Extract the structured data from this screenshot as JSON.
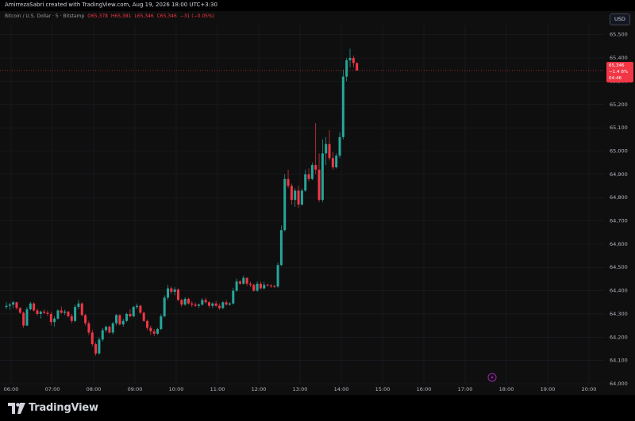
{
  "header": {
    "attribution": "AmirrezaSabri created with TradingView.com, Aug 19, 2026 18:00 UTC+3:30",
    "symbol": "Bitcoin / U.S. Dollar · 5 · Bitstamp",
    "ohlc": {
      "o": "O65,378",
      "h": "H65,381",
      "l": "L65,346",
      "c": "C65,346",
      "change": "−31 (−0.05%)"
    }
  },
  "currency_button": "USD",
  "price_tag": {
    "price": "65,346",
    "change": "−1.4 8%",
    "countdown": "04:46"
  },
  "brand": {
    "name": "TradingView",
    "logo_icon": "tradingview-logo-icon"
  },
  "event_icon": "lightning-icon",
  "colors": {
    "up": "#26a69a",
    "down": "#f23645",
    "background": "#0f0f0f",
    "grid": "#1c1f26"
  },
  "chart_data": {
    "type": "candlestick",
    "interval": "5m",
    "y_ticks": [
      64000,
      64100,
      64200,
      64300,
      64400,
      64500,
      64600,
      64700,
      64800,
      64900,
      65000,
      65100,
      65200,
      65300,
      65400,
      65500
    ],
    "y_tick_labels": [
      "64,000",
      "64,100",
      "64,200",
      "64,300",
      "64,400",
      "64,500",
      "64,600",
      "64,700",
      "64,800",
      "64,900",
      "65,000",
      "65,100",
      "65,200",
      "65,300",
      "65,400",
      "65,500"
    ],
    "ylim": [
      64000,
      65540
    ],
    "x_tick_labels": [
      "06:00",
      "07:00",
      "08:00",
      "09:00",
      "10:00",
      "11:00",
      "12:00",
      "13:00",
      "14:00",
      "15:00",
      "16:00",
      "17:00",
      "18:00",
      "19:00",
      "20:00"
    ],
    "last_price": 65346,
    "candles": [
      {
        "o": 64330,
        "h": 64350,
        "l": 64320,
        "c": 64335
      },
      {
        "o": 64335,
        "h": 64348,
        "l": 64318,
        "c": 64340
      },
      {
        "o": 64340,
        "h": 64355,
        "l": 64325,
        "c": 64350
      },
      {
        "o": 64350,
        "h": 64352,
        "l": 64318,
        "c": 64325
      },
      {
        "o": 64325,
        "h": 64330,
        "l": 64300,
        "c": 64305
      },
      {
        "o": 64305,
        "h": 64310,
        "l": 64240,
        "c": 64250
      },
      {
        "o": 64250,
        "h": 64330,
        "l": 64248,
        "c": 64320
      },
      {
        "o": 64320,
        "h": 64352,
        "l": 64315,
        "c": 64345
      },
      {
        "o": 64345,
        "h": 64350,
        "l": 64310,
        "c": 64315
      },
      {
        "o": 64315,
        "h": 64322,
        "l": 64292,
        "c": 64300
      },
      {
        "o": 64300,
        "h": 64315,
        "l": 64280,
        "c": 64310
      },
      {
        "o": 64310,
        "h": 64320,
        "l": 64300,
        "c": 64305
      },
      {
        "o": 64305,
        "h": 64315,
        "l": 64290,
        "c": 64300
      },
      {
        "o": 64300,
        "h": 64310,
        "l": 64250,
        "c": 64265
      },
      {
        "o": 64265,
        "h": 64290,
        "l": 64245,
        "c": 64280
      },
      {
        "o": 64280,
        "h": 64320,
        "l": 64275,
        "c": 64315
      },
      {
        "o": 64315,
        "h": 64332,
        "l": 64300,
        "c": 64305
      },
      {
        "o": 64305,
        "h": 64318,
        "l": 64295,
        "c": 64310
      },
      {
        "o": 64310,
        "h": 64312,
        "l": 64285,
        "c": 64290
      },
      {
        "o": 64290,
        "h": 64300,
        "l": 64260,
        "c": 64270
      },
      {
        "o": 64270,
        "h": 64340,
        "l": 64265,
        "c": 64330
      },
      {
        "o": 64330,
        "h": 64360,
        "l": 64320,
        "c": 64345
      },
      {
        "o": 64345,
        "h": 64350,
        "l": 64290,
        "c": 64295
      },
      {
        "o": 64295,
        "h": 64300,
        "l": 64250,
        "c": 64260
      },
      {
        "o": 64260,
        "h": 64270,
        "l": 64210,
        "c": 64220
      },
      {
        "o": 64220,
        "h": 64232,
        "l": 64160,
        "c": 64170
      },
      {
        "o": 64170,
        "h": 64178,
        "l": 64120,
        "c": 64130
      },
      {
        "o": 64130,
        "h": 64200,
        "l": 64125,
        "c": 64190
      },
      {
        "o": 64190,
        "h": 64240,
        "l": 64182,
        "c": 64230
      },
      {
        "o": 64230,
        "h": 64250,
        "l": 64220,
        "c": 64245
      },
      {
        "o": 64245,
        "h": 64250,
        "l": 64215,
        "c": 64220
      },
      {
        "o": 64220,
        "h": 64265,
        "l": 64212,
        "c": 64260
      },
      {
        "o": 64260,
        "h": 64300,
        "l": 64250,
        "c": 64295
      },
      {
        "o": 64295,
        "h": 64298,
        "l": 64250,
        "c": 64255
      },
      {
        "o": 64255,
        "h": 64280,
        "l": 64245,
        "c": 64270
      },
      {
        "o": 64270,
        "h": 64305,
        "l": 64265,
        "c": 64300
      },
      {
        "o": 64300,
        "h": 64320,
        "l": 64285,
        "c": 64290
      },
      {
        "o": 64290,
        "h": 64335,
        "l": 64285,
        "c": 64330
      },
      {
        "o": 64330,
        "h": 64345,
        "l": 64320,
        "c": 64335
      },
      {
        "o": 64335,
        "h": 64340,
        "l": 64300,
        "c": 64305
      },
      {
        "o": 64305,
        "h": 64310,
        "l": 64265,
        "c": 64270
      },
      {
        "o": 64270,
        "h": 64275,
        "l": 64230,
        "c": 64240
      },
      {
        "o": 64240,
        "h": 64250,
        "l": 64210,
        "c": 64225
      },
      {
        "o": 64225,
        "h": 64235,
        "l": 64205,
        "c": 64215
      },
      {
        "o": 64215,
        "h": 64240,
        "l": 64210,
        "c": 64235
      },
      {
        "o": 64235,
        "h": 64300,
        "l": 64230,
        "c": 64290
      },
      {
        "o": 64290,
        "h": 64380,
        "l": 64285,
        "c": 64370
      },
      {
        "o": 64370,
        "h": 64425,
        "l": 64360,
        "c": 64410
      },
      {
        "o": 64410,
        "h": 64418,
        "l": 64385,
        "c": 64395
      },
      {
        "o": 64395,
        "h": 64415,
        "l": 64380,
        "c": 64405
      },
      {
        "o": 64405,
        "h": 64410,
        "l": 64355,
        "c": 64360
      },
      {
        "o": 64360,
        "h": 64365,
        "l": 64330,
        "c": 64340
      },
      {
        "o": 64340,
        "h": 64372,
        "l": 64335,
        "c": 64365
      },
      {
        "o": 64365,
        "h": 64370,
        "l": 64340,
        "c": 64345
      },
      {
        "o": 64345,
        "h": 64355,
        "l": 64330,
        "c": 64340
      },
      {
        "o": 64340,
        "h": 64350,
        "l": 64330,
        "c": 64335
      },
      {
        "o": 64335,
        "h": 64345,
        "l": 64325,
        "c": 64340
      },
      {
        "o": 64340,
        "h": 64368,
        "l": 64335,
        "c": 64360
      },
      {
        "o": 64360,
        "h": 64370,
        "l": 64345,
        "c": 64350
      },
      {
        "o": 64350,
        "h": 64355,
        "l": 64325,
        "c": 64335
      },
      {
        "o": 64335,
        "h": 64350,
        "l": 64325,
        "c": 64345
      },
      {
        "o": 64345,
        "h": 64355,
        "l": 64330,
        "c": 64335
      },
      {
        "o": 64335,
        "h": 64345,
        "l": 64318,
        "c": 64325
      },
      {
        "o": 64325,
        "h": 64355,
        "l": 64320,
        "c": 64350
      },
      {
        "o": 64350,
        "h": 64360,
        "l": 64335,
        "c": 64340
      },
      {
        "o": 64340,
        "h": 64350,
        "l": 64335,
        "c": 64345
      },
      {
        "o": 64345,
        "h": 64412,
        "l": 64340,
        "c": 64400
      },
      {
        "o": 64400,
        "h": 64452,
        "l": 64395,
        "c": 64440
      },
      {
        "o": 64440,
        "h": 64445,
        "l": 64425,
        "c": 64430
      },
      {
        "o": 64430,
        "h": 64465,
        "l": 64425,
        "c": 64455
      },
      {
        "o": 64455,
        "h": 64458,
        "l": 64420,
        "c": 64430
      },
      {
        "o": 64430,
        "h": 64440,
        "l": 64415,
        "c": 64425
      },
      {
        "o": 64425,
        "h": 64430,
        "l": 64395,
        "c": 64400
      },
      {
        "o": 64400,
        "h": 64440,
        "l": 64395,
        "c": 64430
      },
      {
        "o": 64430,
        "h": 64440,
        "l": 64405,
        "c": 64410
      },
      {
        "o": 64410,
        "h": 64438,
        "l": 64405,
        "c": 64425
      },
      {
        "o": 64425,
        "h": 64430,
        "l": 64418,
        "c": 64422
      },
      {
        "o": 64422,
        "h": 64428,
        "l": 64412,
        "c": 64420
      },
      {
        "o": 64420,
        "h": 64425,
        "l": 64412,
        "c": 64418
      },
      {
        "o": 64418,
        "h": 64520,
        "l": 64412,
        "c": 64510
      },
      {
        "o": 64510,
        "h": 64680,
        "l": 64505,
        "c": 64660
      },
      {
        "o": 64660,
        "h": 64900,
        "l": 64655,
        "c": 64880
      },
      {
        "o": 64880,
        "h": 64920,
        "l": 64840,
        "c": 64850
      },
      {
        "o": 64850,
        "h": 64860,
        "l": 64770,
        "c": 64790
      },
      {
        "o": 64790,
        "h": 64840,
        "l": 64760,
        "c": 64830
      },
      {
        "o": 64830,
        "h": 64850,
        "l": 64755,
        "c": 64770
      },
      {
        "o": 64770,
        "h": 64840,
        "l": 64765,
        "c": 64830
      },
      {
        "o": 64830,
        "h": 64920,
        "l": 64825,
        "c": 64900
      },
      {
        "o": 64900,
        "h": 64925,
        "l": 64870,
        "c": 64880
      },
      {
        "o": 64880,
        "h": 64950,
        "l": 64875,
        "c": 64940
      },
      {
        "o": 64940,
        "h": 65120,
        "l": 64900,
        "c": 64920
      },
      {
        "o": 64920,
        "h": 64990,
        "l": 64780,
        "c": 64790
      },
      {
        "o": 64790,
        "h": 65050,
        "l": 64780,
        "c": 64990
      },
      {
        "o": 64990,
        "h": 65060,
        "l": 64940,
        "c": 65030
      },
      {
        "o": 65030,
        "h": 65090,
        "l": 64960,
        "c": 64970
      },
      {
        "o": 64970,
        "h": 64995,
        "l": 64920,
        "c": 64930
      },
      {
        "o": 64930,
        "h": 64990,
        "l": 64925,
        "c": 64980
      },
      {
        "o": 64980,
        "h": 65080,
        "l": 64970,
        "c": 65060
      },
      {
        "o": 65060,
        "h": 65350,
        "l": 65050,
        "c": 65320
      },
      {
        "o": 65320,
        "h": 65400,
        "l": 65300,
        "c": 65390
      },
      {
        "o": 65390,
        "h": 65440,
        "l": 65360,
        "c": 65400
      },
      {
        "o": 65400,
        "h": 65410,
        "l": 65360,
        "c": 65378
      },
      {
        "o": 65378,
        "h": 65381,
        "l": 65346,
        "c": 65346
      }
    ]
  }
}
